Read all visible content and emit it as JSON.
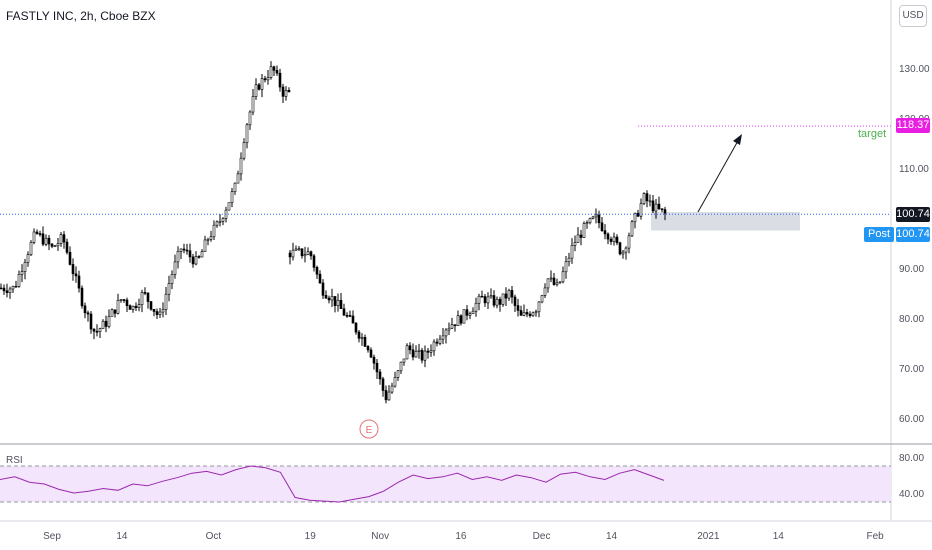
{
  "header": {
    "title": "FASTLY INC, 2h, Cboe BZX",
    "currency": "USD"
  },
  "annotations": {
    "target_label": "target",
    "earnings_marker": "E",
    "post_label": "Post"
  },
  "colors": {
    "candle": "#000000",
    "target_line": "#e040fb",
    "target_tag": "#e91ee3",
    "last_price_tag": "#131722",
    "post_tag": "#2196f3",
    "rsi_line": "#9c27b0",
    "rsi_band": "#f3e5fb",
    "earnings": "#e57373",
    "zone": "#d1d4dc",
    "price_line": "#2962ff"
  },
  "chart_data": [
    {
      "type": "candlestick",
      "title": "FASTLY INC, 2h, Cboe BZX",
      "ylim": [
        55,
        140
      ],
      "y_ticks": [
        "60.00",
        "70.00",
        "80.00",
        "90.00",
        "100.00",
        "110.00",
        "120.00",
        "130.00"
      ],
      "x_tick_labels": [
        "Sep",
        "14",
        "Oct",
        "19",
        "Nov",
        "16",
        "Dec",
        "14",
        "2021",
        "14",
        "Feb"
      ],
      "last_price": "100.74",
      "post_price": "100.74",
      "target_price": "118.37",
      "target_zone": [
        97.5,
        101.2
      ],
      "path": [
        [
          "2020-08-25",
          86
        ],
        [
          "2020-08-27",
          92
        ],
        [
          "2020-08-29",
          97
        ],
        [
          "2020-09-01",
          94
        ],
        [
          "2020-09-03",
          96
        ],
        [
          "2020-09-05",
          89
        ],
        [
          "2020-09-07",
          82
        ],
        [
          "2020-09-09",
          77
        ],
        [
          "2020-09-11",
          79
        ],
        [
          "2020-09-14",
          84
        ],
        [
          "2020-09-16",
          82
        ],
        [
          "2020-09-18",
          85
        ],
        [
          "2020-09-21",
          80
        ],
        [
          "2020-09-23",
          88
        ],
        [
          "2020-09-25",
          94
        ],
        [
          "2020-09-28",
          91
        ],
        [
          "2020-09-30",
          96
        ],
        [
          "2020-10-02",
          99
        ],
        [
          "2020-10-05",
          106
        ],
        [
          "2020-10-07",
          118
        ],
        [
          "2020-10-09",
          126
        ],
        [
          "2020-10-12",
          130
        ],
        [
          "2020-10-14",
          125
        ]
      ],
      "path2": [
        [
          "2020-10-19",
          93
        ],
        [
          "2020-10-21",
          86
        ],
        [
          "2020-10-23",
          84
        ],
        [
          "2020-10-26",
          80
        ],
        [
          "2020-10-28",
          77
        ],
        [
          "2020-10-30",
          74
        ],
        [
          "2020-11-02",
          64
        ],
        [
          "2020-11-04",
          68
        ],
        [
          "2020-11-06",
          74
        ],
        [
          "2020-11-09",
          72
        ],
        [
          "2020-11-11",
          75
        ],
        [
          "2020-11-13",
          78
        ],
        [
          "2020-11-16",
          80
        ],
        [
          "2020-11-18",
          82
        ],
        [
          "2020-11-20",
          84
        ],
        [
          "2020-11-23",
          83
        ],
        [
          "2020-11-25",
          85
        ],
        [
          "2020-11-27",
          80
        ],
        [
          "2020-11-30",
          82
        ],
        [
          "2020-12-02",
          88
        ],
        [
          "2020-12-04",
          86
        ],
        [
          "2020-12-07",
          95
        ],
        [
          "2020-12-09",
          98
        ],
        [
          "2020-12-11",
          100
        ],
        [
          "2020-12-14",
          96
        ],
        [
          "2020-12-16",
          93
        ],
        [
          "2020-12-18",
          99
        ],
        [
          "2020-12-20",
          104
        ],
        [
          "2020-12-22",
          102
        ],
        [
          "2020-12-24",
          100.74
        ]
      ]
    },
    {
      "type": "line",
      "title": "RSI",
      "y_ticks": [
        "40.00",
        "80.00"
      ],
      "band": [
        30,
        70
      ],
      "values": [
        55,
        58,
        52,
        50,
        44,
        40,
        42,
        45,
        43,
        50,
        48,
        53,
        57,
        62,
        64,
        60,
        66,
        70,
        68,
        63,
        35,
        32,
        31,
        30,
        33,
        36,
        42,
        52,
        60,
        56,
        58,
        62,
        55,
        58,
        54,
        60,
        57,
        52,
        61,
        63,
        58,
        55,
        62,
        66,
        60,
        54
      ]
    }
  ]
}
